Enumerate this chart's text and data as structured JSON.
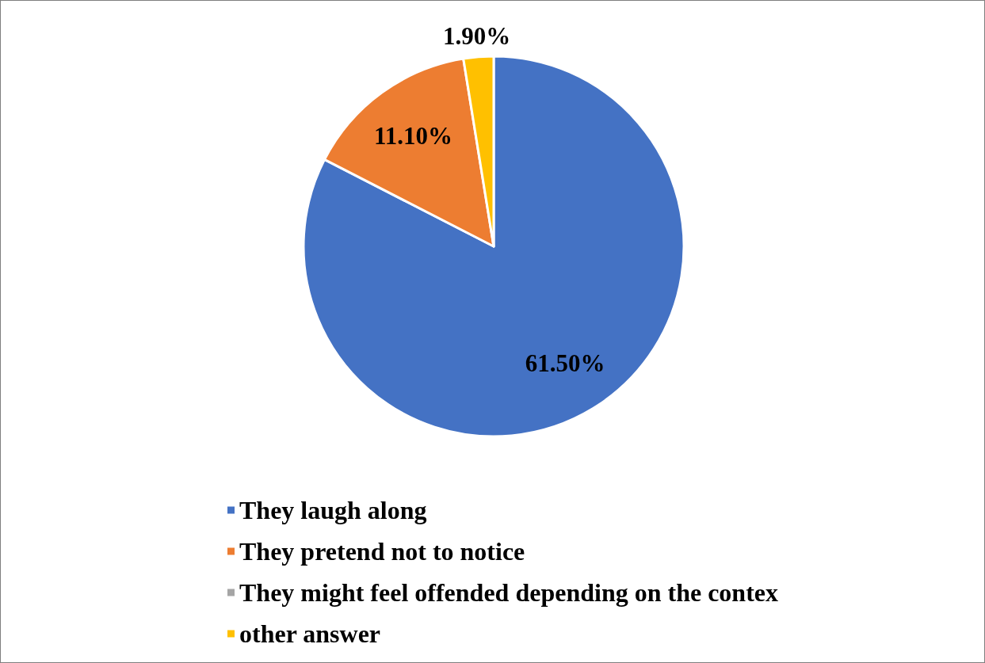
{
  "chart_data": {
    "type": "pie",
    "categories": [
      "They laugh along",
      "They pretend not to notice",
      "They might feel offended depending on the contex",
      "other answer"
    ],
    "values": [
      61.5,
      11.1,
      null,
      1.9
    ],
    "value_labels": [
      "61.50%",
      "11.10%",
      null,
      "1.90%"
    ],
    "colors": [
      "#4472c4",
      "#ed7d31",
      "#a5a5a5",
      "#ffc000"
    ],
    "legend": "bottom"
  }
}
